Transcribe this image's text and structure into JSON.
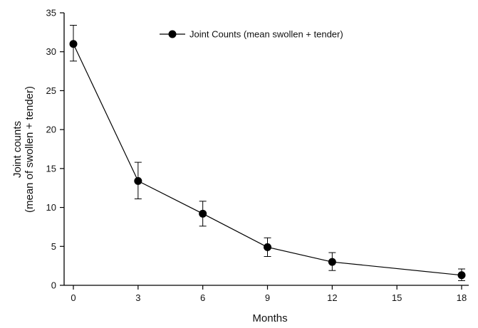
{
  "chart_data": {
    "type": "line",
    "xlabel": "Months",
    "ylabel_line1": "Joint counts",
    "ylabel_line2": "(mean of swollen + tender)",
    "xlim": [
      0,
      18
    ],
    "ylim": [
      0,
      35
    ],
    "xticks": [
      0,
      3,
      6,
      9,
      12,
      15,
      18
    ],
    "yticks": [
      0,
      5,
      10,
      15,
      20,
      25,
      30,
      35
    ],
    "grid": false,
    "legend_position": "top-center",
    "series": [
      {
        "name": "Joint Counts (mean swollen + tender)",
        "color": "#000000",
        "marker": "filled-circle",
        "x": [
          0,
          3,
          6,
          9,
          12,
          18
        ],
        "y": [
          31.0,
          13.4,
          9.2,
          4.9,
          3.0,
          1.3
        ],
        "error_low": [
          28.8,
          11.1,
          7.6,
          3.7,
          1.9,
          0.6
        ],
        "error_high": [
          33.4,
          15.8,
          10.8,
          6.1,
          4.2,
          2.1
        ]
      }
    ]
  }
}
